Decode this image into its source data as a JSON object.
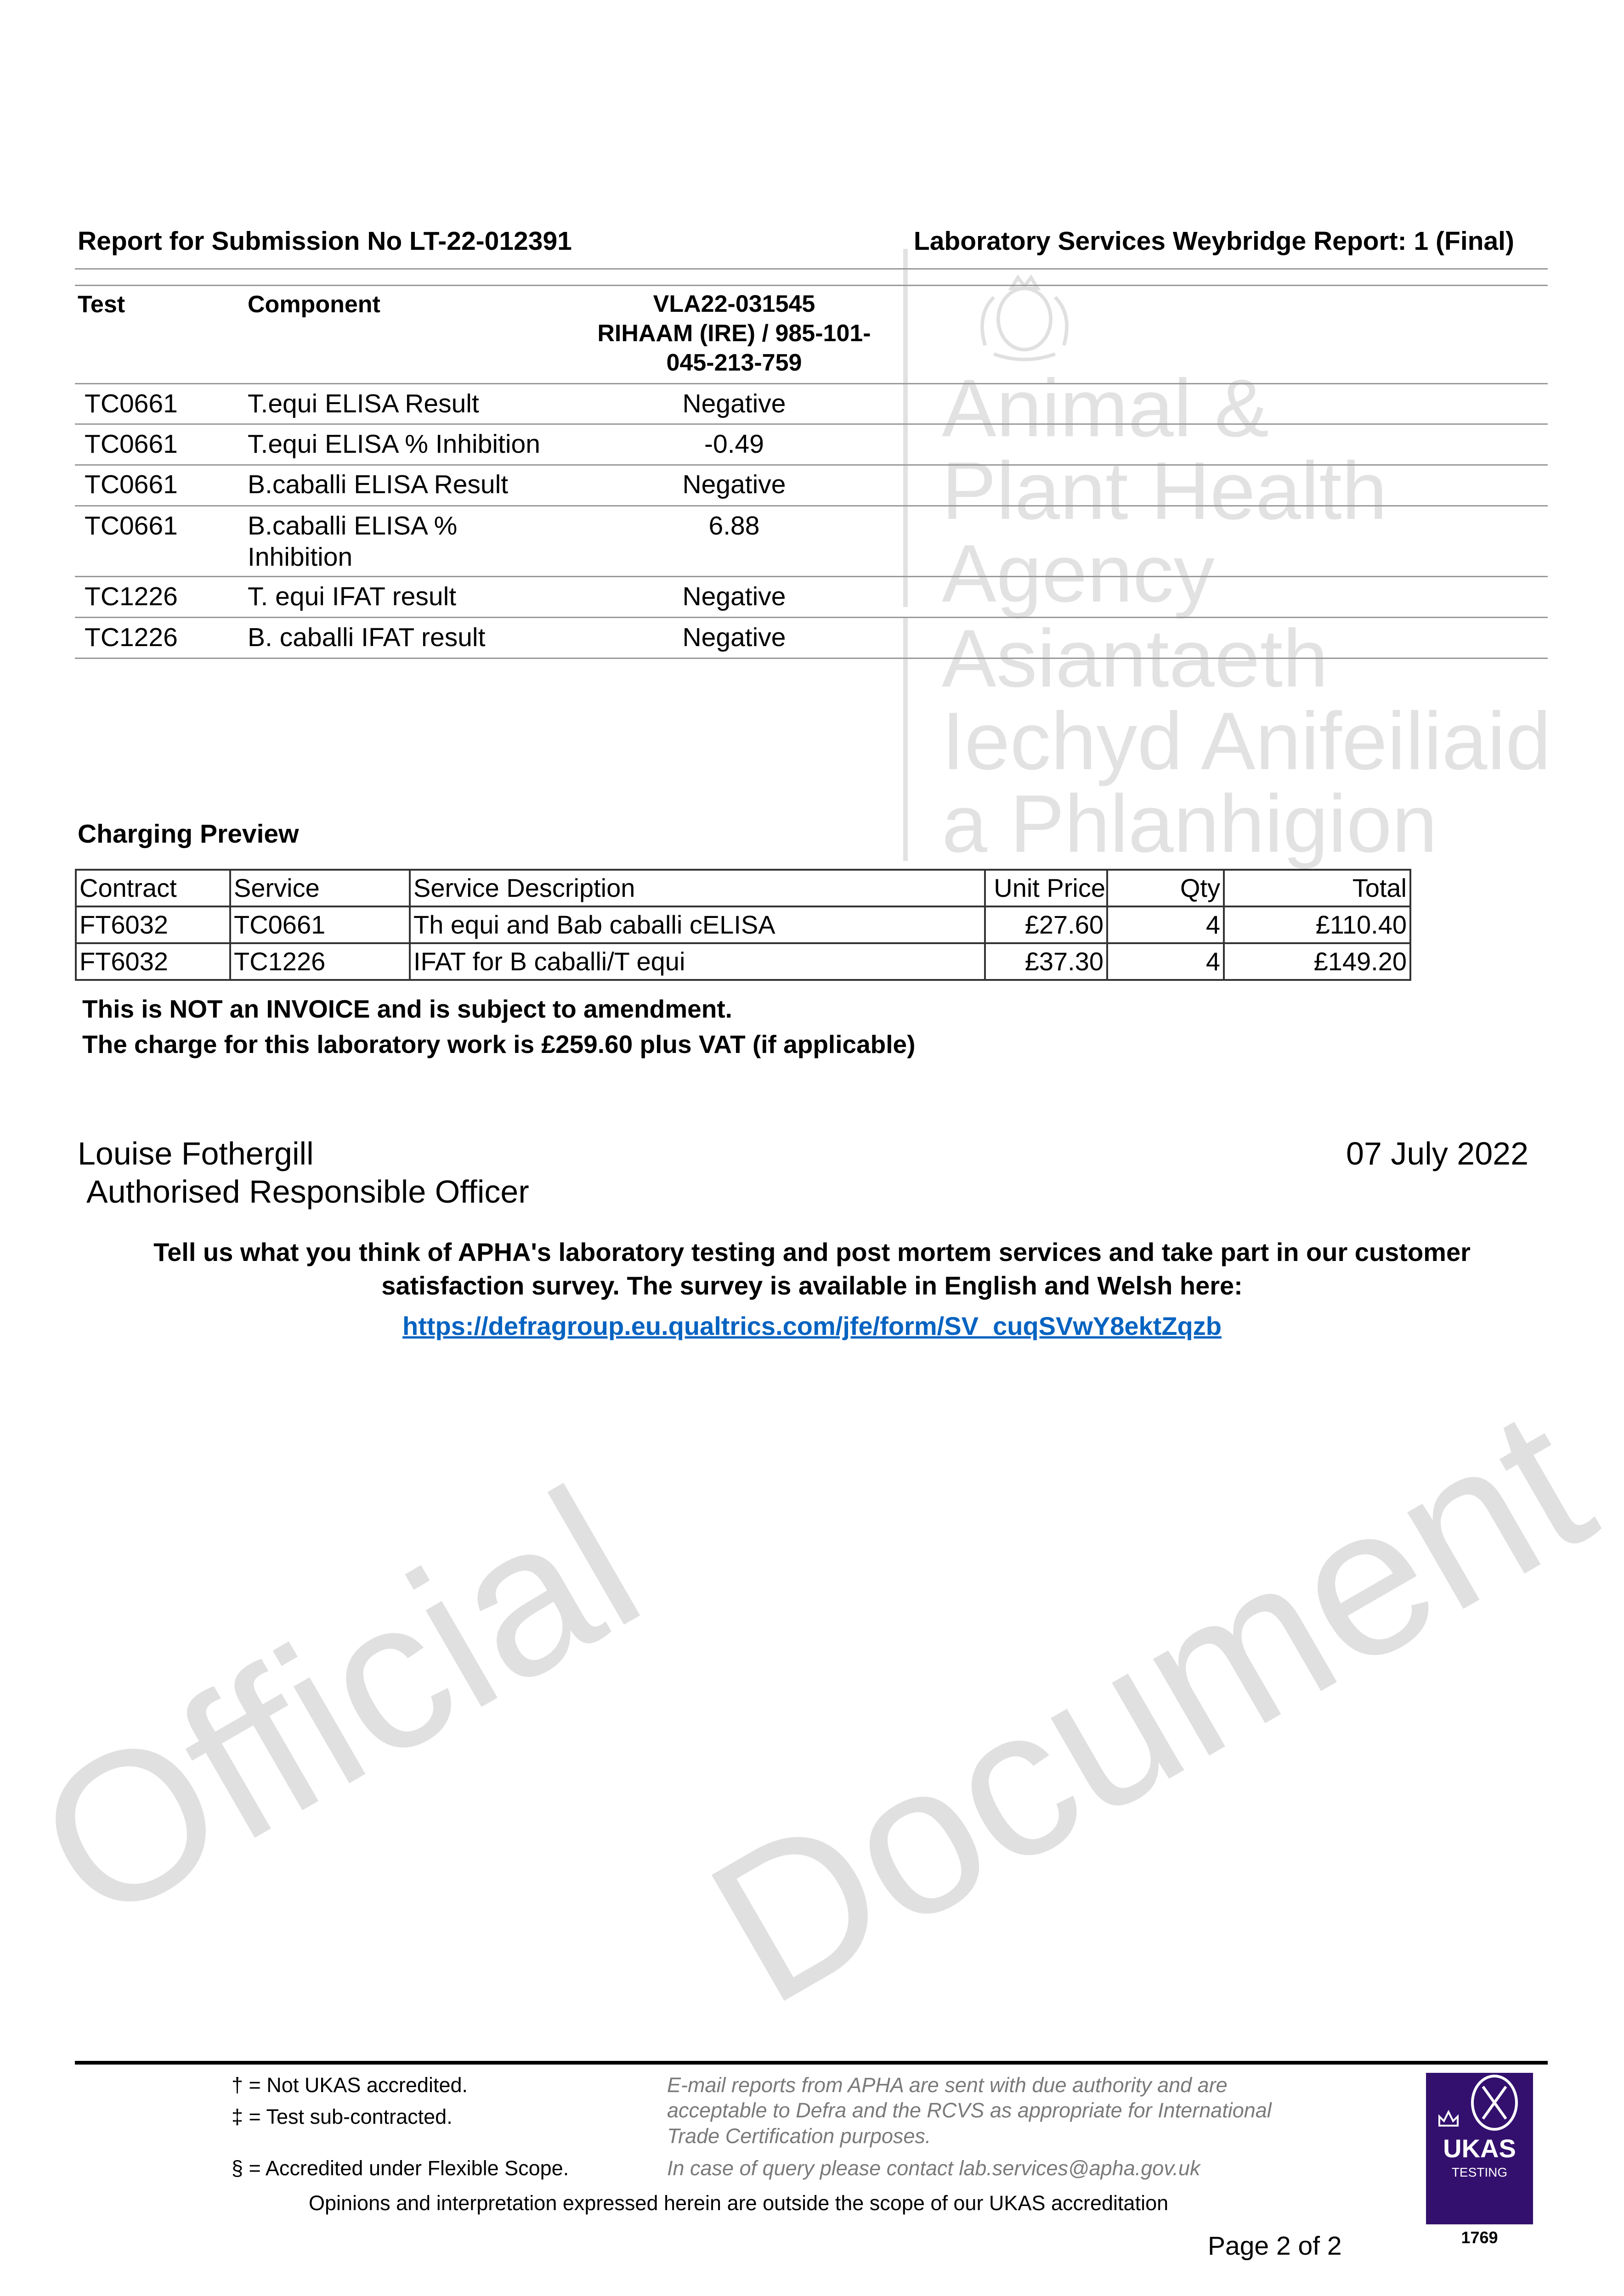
{
  "header": {
    "submission": "Report for Submission No LT-22-012391",
    "report": "Laboratory Services Weybridge Report: 1 (Final)"
  },
  "watermark": {
    "agency_lines": [
      "Animal &",
      "Plant Health",
      "Agency",
      "Asiantaeth",
      "Iechyd Anifeiliaid",
      "a Phlanhigion"
    ],
    "official": "Official",
    "document": "Document"
  },
  "results": {
    "columns": [
      "Test",
      "Component"
    ],
    "sample_header": [
      "VLA22-031545",
      "RIHAAM (IRE) / 985-101-",
      "045-213-759"
    ],
    "rows": [
      {
        "test": "TC0661",
        "component": "T.equi ELISA Result",
        "value": "Negative"
      },
      {
        "test": "TC0661",
        "component": "T.equi ELISA % Inhibition",
        "value": "-0.49"
      },
      {
        "test": "TC0661",
        "component": "B.caballi ELISA Result",
        "value": "Negative"
      },
      {
        "test": "TC0661",
        "component": "B.caballi ELISA %",
        "component2": "Inhibition",
        "value": "6.88"
      },
      {
        "test": "TC1226",
        "component": "T. equi IFAT result",
        "value": "Negative"
      },
      {
        "test": "TC1226",
        "component": "B. caballi IFAT result",
        "value": "Negative"
      }
    ]
  },
  "charging": {
    "title": "Charging Preview",
    "columns": [
      "Contract",
      "Service",
      "Service Description",
      "Unit Price",
      "Qty",
      "Total"
    ],
    "rows": [
      [
        "FT6032",
        "TC0661",
        "Th equi and Bab caballi cELISA",
        "£27.60",
        "4",
        "£110.40"
      ],
      [
        "FT6032",
        "TC1226",
        "IFAT for B caballi/T equi",
        "£37.30",
        "4",
        "£149.20"
      ]
    ],
    "note1": "This is NOT an INVOICE and is subject to amendment.",
    "note2": "The charge for this laboratory work is £259.60 plus VAT (if applicable)"
  },
  "signature": {
    "name": "Louise Fothergill",
    "role": "Authorised Responsible Officer",
    "date": "07 July 2022"
  },
  "survey": {
    "line1": "Tell us what you think of APHA's laboratory testing and post mortem services and take part in our customer",
    "line2": "satisfaction survey.  The survey is available in English and Welsh here:",
    "link": "https://defragroup.eu.qualtrics.com/jfe/form/SV_cuqSVwY8ektZqzb",
    "link_color": "#0563c1"
  },
  "footer": {
    "dagger": "† = Not UKAS accredited.",
    "ddagger": "‡ = Test sub-contracted.",
    "section": "§ = Accredited under Flexible Scope.",
    "email1": "E-mail reports from APHA are sent with due authority and are",
    "email2": "acceptable to Defra and the RCVS as appropriate for International",
    "email3": "Trade Certification purposes.",
    "query": "In case of query please contact lab.services@apha.gov.uk",
    "opinions": "Opinions and interpretation expressed herein are outside the scope of our UKAS accreditation",
    "page": "Page 2 of  2",
    "ukas": {
      "name": "UKAS",
      "sub": "TESTING",
      "number": "1769",
      "color": "#33106e"
    }
  }
}
